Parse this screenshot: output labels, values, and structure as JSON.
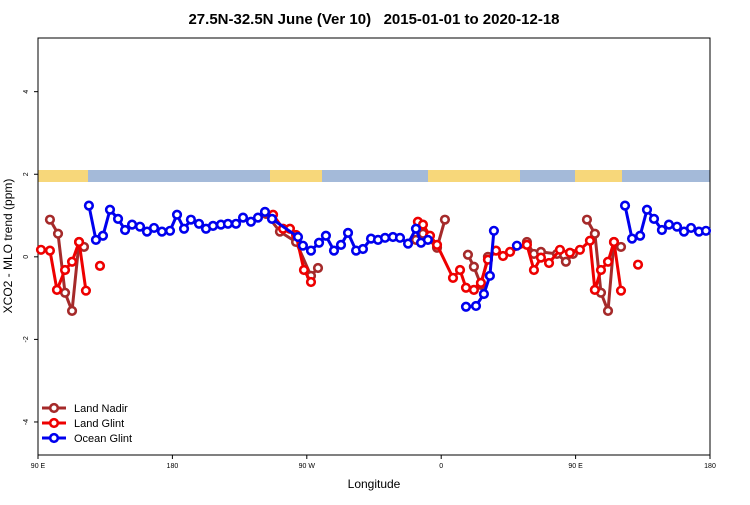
{
  "chart_data": {
    "type": "line",
    "title": "27.5N-32.5N June (Ver 10)   2015-01-01 to 2020-12-18",
    "x_label": "Longitude",
    "y_label": "XCO2 - MLO trend (ppm)",
    "xlim": [
      90,
      540
    ],
    "ylim": [
      -4.8,
      5.3
    ],
    "xticks": [
      {
        "value": 90,
        "label": "90 E"
      },
      {
        "value": 180,
        "label": "180"
      },
      {
        "value": 270,
        "label": "90 W"
      },
      {
        "value": 360,
        "label": "0"
      },
      {
        "value": 450,
        "label": "90 E"
      },
      {
        "value": 540,
        "label": "180"
      }
    ],
    "yticks": [
      4,
      2,
      0,
      -2,
      -4
    ],
    "legend": "bottom-left",
    "series": [
      {
        "name": "Land Nadir",
        "color": "#a52a2a",
        "x": [
          98.0,
          103.4,
          108.1,
          112.8,
          117.5,
          120.8,
          null,
          242.7,
          252.0,
          262.8,
          272.8,
          277.5,
          null,
          343.1,
          347.8,
          357.2,
          362.5,
          null,
          377.9,
          381.9,
          386.6,
          391.3,
          null,
          417.4,
          422.1,
          426.8,
          437.5,
          443.5,
          448.2,
          null,
          457.6,
          462.9,
          467.0,
          471.7,
          475.7,
          480.4
        ],
        "values": [
          0.9,
          0.56,
          -0.87,
          -1.31,
          0.36,
          0.24,
          null,
          1.04,
          0.61,
          0.36,
          -0.46,
          -0.27,
          null,
          0.41,
          0.56,
          0.22,
          0.9,
          null,
          0.05,
          -0.24,
          -0.68,
          0,
          null,
          0.36,
          0.07,
          0.12,
          0.07,
          -0.12,
          0.07,
          null,
          0.9,
          0.56,
          -0.87,
          -1.31,
          0.36,
          0.24
        ]
      },
      {
        "name": "Land Glint",
        "color": "#ee0000",
        "x": [
          92.0,
          98.0,
          102.7,
          108.1,
          112.8,
          117.5,
          122.1,
          null,
          131.5,
          null,
          247.4,
          254.1,
          258.7,
          262.8,
          268.1,
          272.8,
          null,
          344.4,
          347.8,
          352.5,
          357.2,
          367.9,
          372.6,
          376.6,
          381.9,
          386.6,
          391.3,
          396.7,
          401.4,
          406.1,
          417.4,
          422.1,
          426.8,
          432.2,
          439.5,
          446.2,
          452.9,
          459.6,
          462.9,
          467.0,
          471.7,
          475.7,
          480.4,
          null,
          491.8
        ],
        "values": [
          0.17,
          0.15,
          -0.8,
          -0.32,
          -0.12,
          0.36,
          -0.82,
          null,
          -0.22,
          null,
          1.02,
          0.68,
          0.68,
          0.53,
          -0.32,
          -0.61,
          null,
          0.85,
          0.78,
          0.51,
          0.29,
          -0.51,
          -0.32,
          -0.75,
          -0.8,
          -0.63,
          -0.07,
          0.15,
          0.02,
          0.12,
          0.29,
          -0.32,
          -0.02,
          -0.15,
          0.17,
          0.1,
          0.17,
          0.39,
          -0.8,
          -0.32,
          -0.12,
          0.36,
          -0.82,
          null,
          -0.19
        ]
      },
      {
        "name": "Ocean Glint",
        "color": "#0000ee",
        "x": [
          124.1,
          128.8,
          133.5,
          138.2,
          143.6,
          148.3,
          153.0,
          158.3,
          163.0,
          167.7,
          173.0,
          178.4,
          183.1,
          187.8,
          192.4,
          197.8,
          202.5,
          207.2,
          212.5,
          217.2,
          222.6,
          227.3,
          232.6,
          237.3,
          242.0,
          246.7,
          264.1,
          267.4,
          272.8,
          278.2,
          282.8,
          288.2,
          292.9,
          297.6,
          303.0,
          307.6,
          313.0,
          317.7,
          322.4,
          327.7,
          332.4,
          337.8,
          343.1,
          346.5,
          351.1,
          null,
          376.6,
          383.3,
          388.6,
          392.6,
          395.3,
          null,
          410.7,
          null,
          483.1,
          487.8,
          493.2,
          497.8,
          502.5,
          507.8,
          512.5,
          517.9,
          522.6,
          527.3,
          532.6,
          537.3
        ],
        "values": [
          1.24,
          0.41,
          0.51,
          1.14,
          0.92,
          0.65,
          0.78,
          0.73,
          0.61,
          0.7,
          0.61,
          0.63,
          1.02,
          0.68,
          0.9,
          0.8,
          0.68,
          0.75,
          0.78,
          0.8,
          0.8,
          0.95,
          0.85,
          0.95,
          1.09,
          0.92,
          0.48,
          0.27,
          0.15,
          0.34,
          0.51,
          0.15,
          0.29,
          0.58,
          0.15,
          0.19,
          0.44,
          0.41,
          0.46,
          0.48,
          0.46,
          0.32,
          0.68,
          0.34,
          0.41,
          null,
          -1.21,
          -1.19,
          -0.9,
          -0.46,
          0.63,
          null,
          0.27,
          null,
          1.24,
          0.44,
          0.51,
          1.14,
          0.92,
          0.65,
          0.78,
          0.73,
          0.61,
          0.7,
          0.61,
          0.63
        ]
      }
    ]
  }
}
